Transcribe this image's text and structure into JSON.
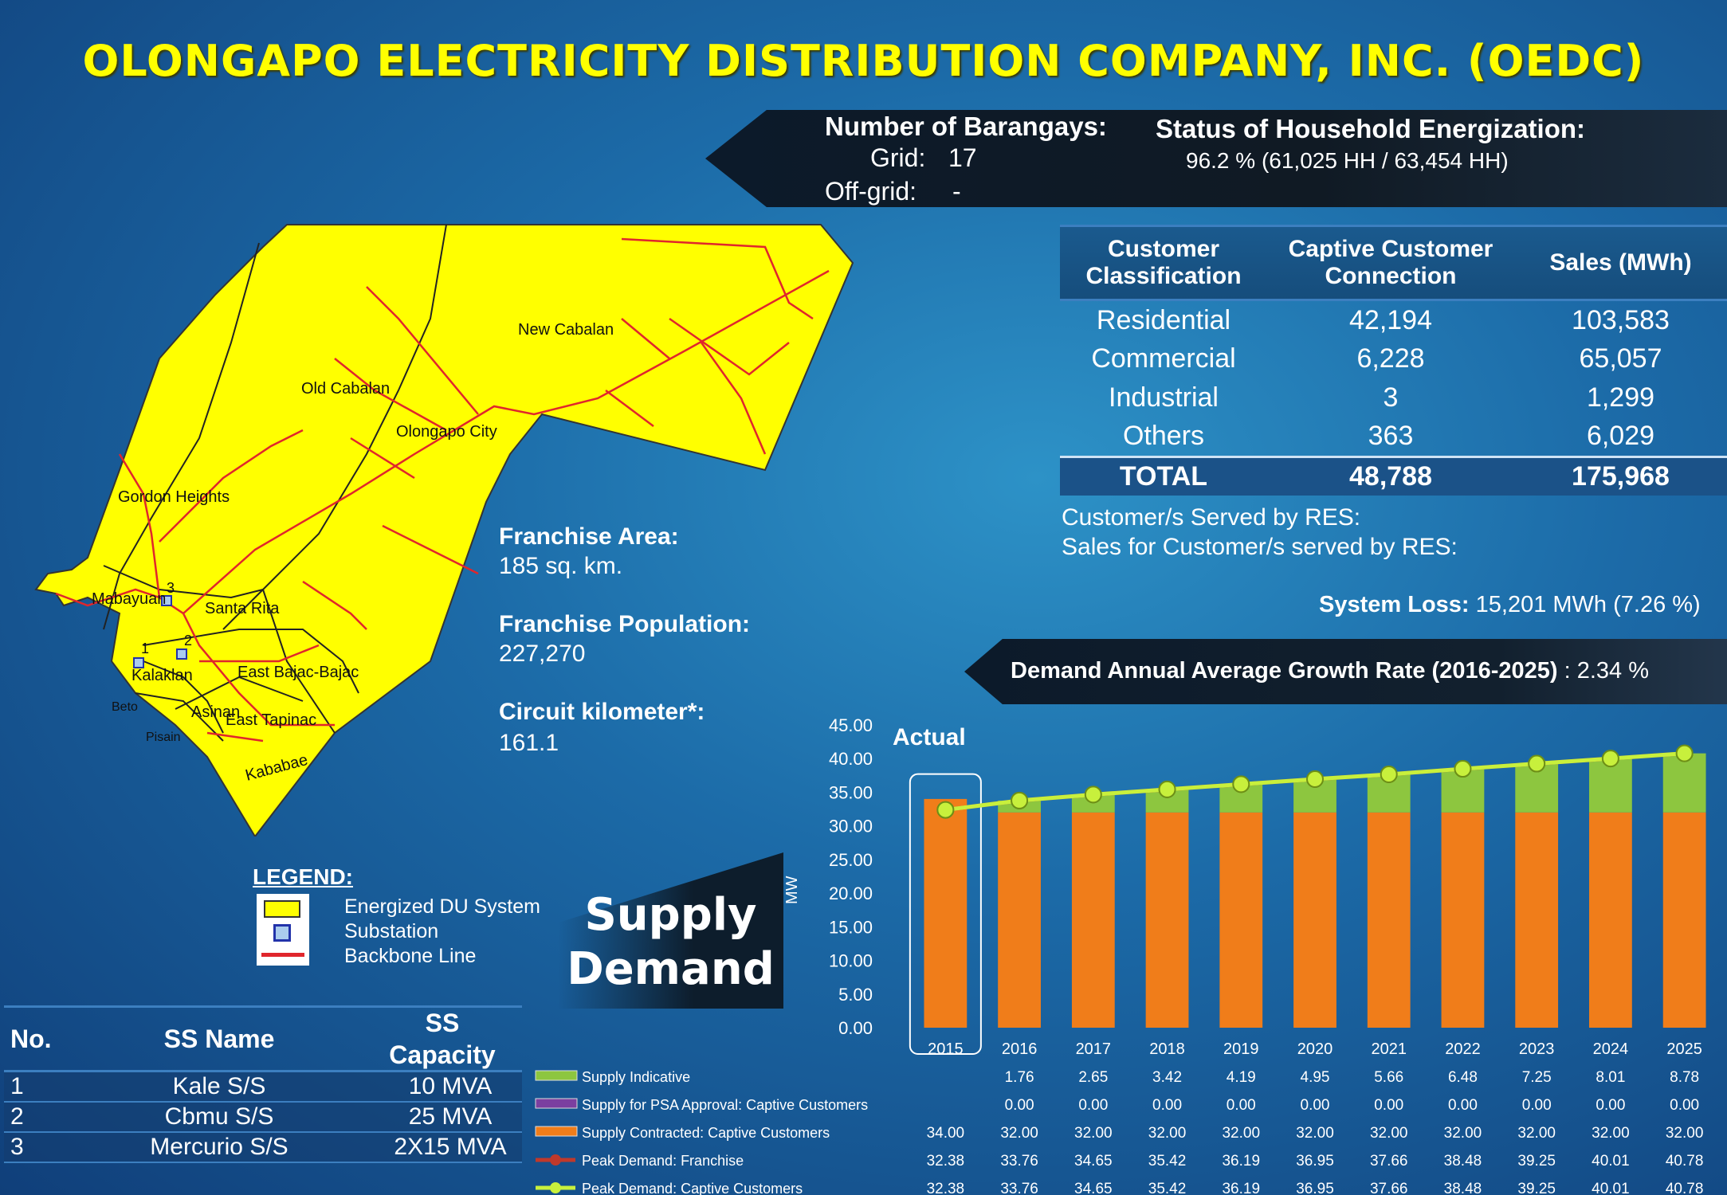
{
  "title": "OLONGAPO ELECTRICITY DISTRIBUTION COMPANY, INC. (OEDC)",
  "barangays": {
    "heading": "Number of Barangays:",
    "grid_label": "Grid:",
    "grid_value": "17",
    "offgrid_label": "Off-grid:",
    "offgrid_value": "-"
  },
  "energization": {
    "heading": "Status of Household Energization:",
    "value": "96.2 % (61,025 HH /  63,454 HH)"
  },
  "customer_table": {
    "headers": [
      "Customer Classification",
      "Captive Customer Connection",
      "Sales (MWh)"
    ],
    "rows": [
      {
        "cls": "Residential",
        "conn": "42,194",
        "sales": "103,583"
      },
      {
        "cls": "Commercial",
        "conn": "6,228",
        "sales": "65,057"
      },
      {
        "cls": "Industrial",
        "conn": "3",
        "sales": "1,299"
      },
      {
        "cls": "Others",
        "conn": "363",
        "sales": "6,029"
      }
    ],
    "total": {
      "cls": "TOTAL",
      "conn": "48,788",
      "sales": "175,968"
    }
  },
  "res": {
    "served": "Customer/s Served by RES:",
    "sales": "Sales for Customer/s served by RES:"
  },
  "system_loss": {
    "label": "System Loss:",
    "value": "15,201 MWh (7.26 %)"
  },
  "growth": {
    "label": "Demand Annual Average Growth Rate (2016-2025)",
    "value": ": 2.34 %"
  },
  "franchise": {
    "area_label": "Franchise Area:",
    "area_value": "185 sq. km.",
    "pop_label": "Franchise Population:",
    "pop_value": "227,270",
    "circuit_label": "Circuit kilometer*:",
    "circuit_value": "161.1"
  },
  "map": {
    "places": [
      "New Cabalan",
      "Old Cabalan",
      "Olongapo City",
      "Gordon Heights",
      "Mabayuan",
      "Santa Rita",
      "East Bajac-Bajac",
      "Kalaklan",
      "Asinan",
      "East Tapinac",
      "Kababae",
      "Beto",
      "Pisain"
    ],
    "substation_numbers": [
      "1",
      "2",
      "3"
    ],
    "fill_color": "#ffff00",
    "line_color": "#e0262c"
  },
  "legend": {
    "title": "LEGEND:",
    "items": [
      "Energized DU System",
      "Substation",
      "Backbone Line"
    ]
  },
  "supply_demand": {
    "line1": "Supply",
    "line2": "Demand"
  },
  "substation_table": {
    "headers": [
      "No.",
      "SS Name",
      "SS Capacity"
    ],
    "rows": [
      {
        "no": "1",
        "name": "Kale S/S",
        "cap": "10 MVA"
      },
      {
        "no": "2",
        "name": "Cbmu S/S",
        "cap": "25 MVA"
      },
      {
        "no": "3",
        "name": "Mercurio S/S",
        "cap": "2X15 MVA"
      }
    ]
  },
  "chart_data": {
    "type": "bar",
    "ylabel": "MW",
    "ylim": [
      0,
      45
    ],
    "yticks": [
      "0.00",
      "5.00",
      "10.00",
      "15.00",
      "20.00",
      "25.00",
      "30.00",
      "35.00",
      "40.00",
      "45.00"
    ],
    "annotation": "Actual",
    "categories": [
      "2015",
      "2016",
      "2017",
      "2018",
      "2019",
      "2020",
      "2021",
      "2022",
      "2023",
      "2024",
      "2025"
    ],
    "series": [
      {
        "name": "Supply Indicative",
        "type": "bar-stacked",
        "color": "#8dc63f",
        "values": [
          null,
          1.76,
          2.65,
          3.42,
          4.19,
          4.95,
          5.66,
          6.48,
          7.25,
          8.01,
          8.78
        ],
        "labels": [
          "",
          "1.76",
          "2.65",
          "3.42",
          "4.19",
          "4.95",
          "5.66",
          "6.48",
          "7.25",
          "8.01",
          "8.78"
        ]
      },
      {
        "name": "Supply for PSA Approval: Captive Customers",
        "type": "bar-stacked",
        "color": "#7b3fa0",
        "values": [
          null,
          0,
          0,
          0,
          0,
          0,
          0,
          0,
          0,
          0,
          0
        ],
        "labels": [
          "",
          "0.00",
          "0.00",
          "0.00",
          "0.00",
          "0.00",
          "0.00",
          "0.00",
          "0.00",
          "0.00",
          "0.00"
        ]
      },
      {
        "name": "Supply Contracted: Captive Customers",
        "type": "bar-stacked",
        "color": "#f07d1a",
        "values": [
          34.0,
          32.0,
          32.0,
          32.0,
          32.0,
          32.0,
          32.0,
          32.0,
          32.0,
          32.0,
          32.0
        ],
        "labels": [
          "34.00",
          "32.00",
          "32.00",
          "32.00",
          "32.00",
          "32.00",
          "32.00",
          "32.00",
          "32.00",
          "32.00",
          "32.00"
        ]
      },
      {
        "name": "Peak Demand: Franchise",
        "type": "line",
        "color": "#c0392b",
        "values": [
          32.38,
          33.76,
          34.65,
          35.42,
          36.19,
          36.95,
          37.66,
          38.48,
          39.25,
          40.01,
          40.78
        ],
        "labels": [
          "32.38",
          "33.76",
          "34.65",
          "35.42",
          "36.19",
          "36.95",
          "37.66",
          "38.48",
          "39.25",
          "40.01",
          "40.78"
        ]
      },
      {
        "name": "Peak Demand: Captive Customers",
        "type": "line",
        "color": "#c8f03c",
        "values": [
          32.38,
          33.76,
          34.65,
          35.42,
          36.19,
          36.95,
          37.66,
          38.48,
          39.25,
          40.01,
          40.78
        ],
        "labels": [
          "32.38",
          "33.76",
          "34.65",
          "35.42",
          "36.19",
          "36.95",
          "37.66",
          "38.48",
          "39.25",
          "40.01",
          "40.78"
        ]
      }
    ]
  }
}
